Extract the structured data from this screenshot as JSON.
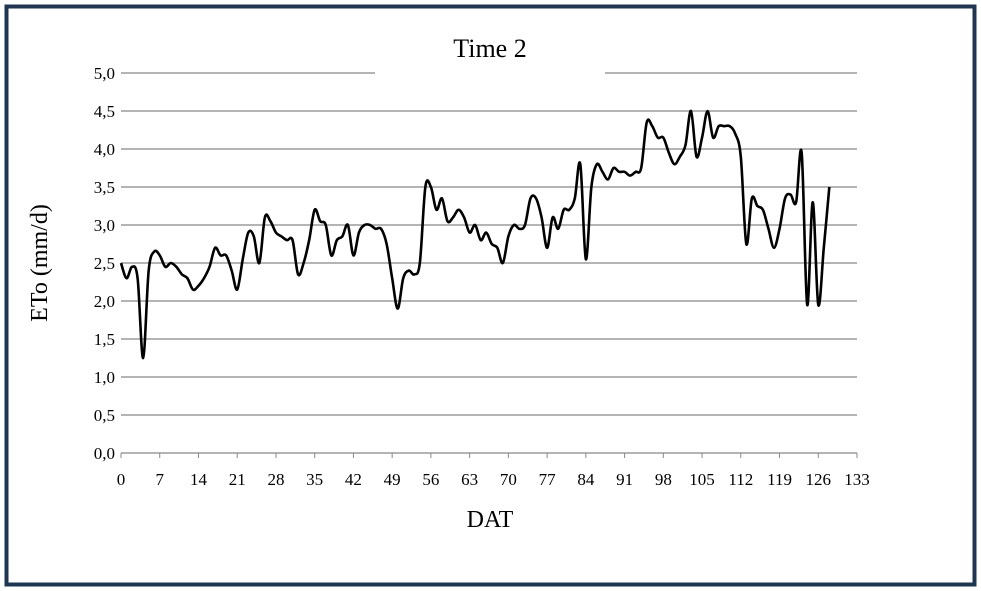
{
  "chart_data": {
    "type": "line",
    "title": "Time 2",
    "x_label": "DAT",
    "y_label": "ETo (mm/d)",
    "x": [
      0,
      1,
      2,
      3,
      4,
      5,
      6,
      7,
      8,
      9,
      10,
      11,
      12,
      13,
      14,
      15,
      16,
      17,
      18,
      19,
      20,
      21,
      22,
      23,
      24,
      25,
      26,
      27,
      28,
      29,
      30,
      31,
      32,
      33,
      34,
      35,
      36,
      37,
      38,
      39,
      40,
      41,
      42,
      43,
      44,
      45,
      46,
      47,
      48,
      49,
      50,
      51,
      52,
      53,
      54,
      55,
      56,
      57,
      58,
      59,
      60,
      61,
      62,
      63,
      64,
      65,
      66,
      67,
      68,
      69,
      70,
      71,
      72,
      73,
      74,
      75,
      76,
      77,
      78,
      79,
      80,
      81,
      82,
      83,
      84,
      85,
      86,
      87,
      88,
      89,
      90,
      91,
      92,
      93,
      94,
      95,
      96,
      97,
      98,
      99,
      100,
      101,
      102,
      103,
      104,
      105,
      106,
      107,
      108,
      109,
      110,
      111,
      112,
      113,
      114,
      115,
      116,
      117,
      118,
      119,
      120,
      121,
      122,
      123,
      124,
      125,
      126,
      127,
      128
    ],
    "series": [
      {
        "name": "ETo",
        "color": "#000000",
        "values": [
          2.5,
          2.3,
          2.45,
          2.3,
          1.25,
          2.4,
          2.65,
          2.6,
          2.45,
          2.5,
          2.45,
          2.35,
          2.3,
          2.15,
          2.2,
          2.3,
          2.45,
          2.7,
          2.6,
          2.6,
          2.4,
          2.15,
          2.55,
          2.9,
          2.85,
          2.5,
          3.1,
          3.05,
          2.9,
          2.85,
          2.8,
          2.8,
          2.35,
          2.5,
          2.8,
          3.2,
          3.05,
          3.0,
          2.6,
          2.8,
          2.85,
          3.0,
          2.6,
          2.9,
          3.0,
          3.0,
          2.95,
          2.95,
          2.75,
          2.3,
          1.9,
          2.3,
          2.4,
          2.35,
          2.5,
          3.5,
          3.5,
          3.2,
          3.35,
          3.05,
          3.1,
          3.2,
          3.1,
          2.9,
          3.0,
          2.8,
          2.9,
          2.75,
          2.7,
          2.5,
          2.85,
          3.0,
          2.95,
          3.0,
          3.35,
          3.35,
          3.1,
          2.7,
          3.1,
          2.95,
          3.2,
          3.2,
          3.35,
          3.8,
          2.55,
          3.5,
          3.8,
          3.7,
          3.6,
          3.75,
          3.7,
          3.7,
          3.65,
          3.7,
          3.75,
          4.35,
          4.3,
          4.15,
          4.15,
          3.95,
          3.8,
          3.9,
          4.05,
          4.5,
          3.9,
          4.15,
          4.5,
          4.15,
          4.3,
          4.3,
          4.3,
          4.2,
          3.9,
          2.75,
          3.35,
          3.25,
          3.2,
          2.95,
          2.7,
          2.95,
          3.35,
          3.4,
          3.3,
          3.95,
          1.95,
          3.3,
          1.95,
          2.7,
          3.5
        ]
      }
    ],
    "xlim": [
      0,
      133
    ],
    "xticks": [
      0,
      7,
      14,
      21,
      28,
      35,
      42,
      49,
      56,
      63,
      70,
      77,
      84,
      91,
      98,
      105,
      112,
      119,
      126,
      133
    ],
    "ylim": [
      0,
      5
    ],
    "yticks": [
      {
        "value": 0,
        "label": "0,0"
      },
      {
        "value": 0.5,
        "label": "0,5"
      },
      {
        "value": 1,
        "label": "1,0"
      },
      {
        "value": 1.5,
        "label": "1,5"
      },
      {
        "value": 2,
        "label": "2,0"
      },
      {
        "value": 2.5,
        "label": "2,5"
      },
      {
        "value": 3,
        "label": "3,0"
      },
      {
        "value": 3.5,
        "label": "3,5"
      },
      {
        "value": 4,
        "label": "4,0"
      },
      {
        "value": 4.5,
        "label": "4,5"
      },
      {
        "value": 5,
        "label": "5,0"
      }
    ],
    "grid": true
  }
}
